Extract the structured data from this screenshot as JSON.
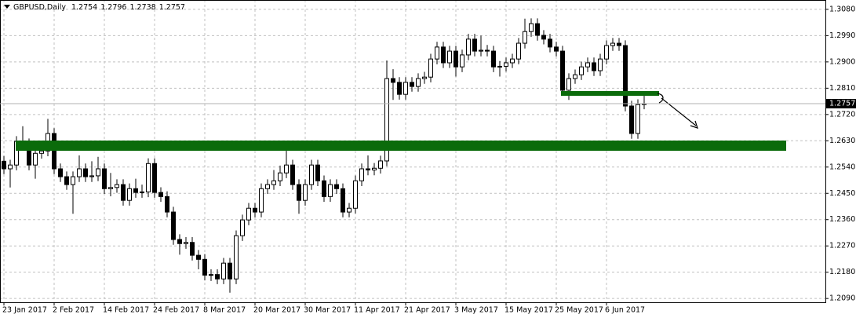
{
  "chart_data": {
    "type": "candlestick",
    "title": "GBPUSD,Daily",
    "categories": [
      "23 Jan 2017",
      null,
      null,
      null,
      null,
      null,
      null,
      null,
      "2 Feb 2017",
      null,
      null,
      null,
      null,
      null,
      null,
      null,
      "14 Feb 2017",
      null,
      null,
      null,
      null,
      null,
      null,
      null,
      "24 Feb 2017",
      null,
      null,
      null,
      null,
      null,
      null,
      null,
      "8 Mar 2017",
      null,
      null,
      null,
      null,
      null,
      null,
      null,
      "20 Mar 2017",
      null,
      null,
      null,
      null,
      null,
      null,
      null,
      "30 Mar 2017",
      null,
      null,
      null,
      null,
      null,
      null,
      null,
      "11 Apr 2017",
      null,
      null,
      null,
      null,
      null,
      null,
      null,
      "21 Apr 2017",
      null,
      null,
      null,
      null,
      null,
      null,
      null,
      "3 May 2017",
      null,
      null,
      null,
      null,
      null,
      null,
      null,
      "15 May 2017",
      null,
      null,
      null,
      null,
      null,
      null,
      null,
      "25 May 2017",
      null,
      null,
      null,
      null,
      null,
      null,
      null,
      "6 Jun 2017",
      null,
      null,
      null,
      null,
      null,
      null
    ],
    "series": {
      "open": [
        1.256,
        1.2534,
        1.2547,
        1.2628,
        1.262,
        1.2547,
        1.2587,
        1.2595,
        1.2655,
        1.2534,
        1.2507,
        1.248,
        1.2507,
        1.2534,
        1.2507,
        1.251,
        1.2534,
        1.2466,
        1.247,
        1.248,
        1.2426,
        1.2466,
        1.2453,
        1.2455,
        1.2552,
        1.2453,
        1.2439,
        1.2386,
        1.2292,
        1.2278,
        1.2282,
        1.2238,
        1.2224,
        1.217,
        1.2172,
        1.2157,
        1.2211,
        1.2157,
        1.2305,
        1.2359,
        1.2399,
        1.2386,
        1.2466,
        1.248,
        1.2493,
        1.252,
        1.2547,
        1.248,
        1.2426,
        1.248,
        1.2547,
        1.2493,
        1.2439,
        1.248,
        1.2466,
        1.2386,
        1.2399,
        1.2493,
        1.2534,
        1.253,
        1.2536,
        1.2561,
        1.2843,
        1.283,
        1.2789,
        1.283,
        1.2816,
        1.2843,
        1.2848,
        1.291,
        1.2951,
        1.2897,
        1.2937,
        1.2883,
        1.2924,
        1.2978,
        1.2937,
        1.294,
        1.2937,
        1.2883,
        1.2885,
        1.2897,
        1.291,
        1.2964,
        1.3004,
        1.3031,
        1.2991,
        1.2978,
        1.2951,
        1.2937,
        1.2803,
        1.2843,
        1.2856,
        1.2883,
        1.2897,
        1.287,
        1.291,
        1.2956,
        1.2964,
        1.2956,
        1.2749,
        1.2655,
        1.2754
      ],
      "high": [
        1.2578,
        1.2565,
        1.2646,
        1.268,
        1.2638,
        1.2605,
        1.2613,
        1.2705,
        1.2673,
        1.2552,
        1.2525,
        1.2525,
        1.258,
        1.2552,
        1.256,
        1.2575,
        1.2552,
        1.252,
        1.2498,
        1.2498,
        1.2484,
        1.25,
        1.248,
        1.257,
        1.257,
        1.2471,
        1.2457,
        1.2404,
        1.231,
        1.23,
        1.23,
        1.2256,
        1.2242,
        1.219,
        1.219,
        1.2229,
        1.2229,
        1.2323,
        1.2377,
        1.2417,
        1.2417,
        1.2484,
        1.2498,
        1.253,
        1.2545,
        1.26,
        1.2565,
        1.2498,
        1.2498,
        1.2565,
        1.2565,
        1.2511,
        1.2498,
        1.2498,
        1.2484,
        1.2417,
        1.2511,
        1.2552,
        1.258,
        1.2554,
        1.2579,
        1.2905,
        1.2875,
        1.2848,
        1.2848,
        1.2848,
        1.2861,
        1.2866,
        1.2928,
        1.2969,
        1.2969,
        1.2955,
        1.2955,
        1.2942,
        1.2996,
        1.2996,
        1.299,
        1.2958,
        1.2955,
        1.2903,
        1.2915,
        1.2928,
        1.2982,
        1.3048,
        1.3049,
        1.3049,
        1.3009,
        1.2996,
        1.2969,
        1.2955,
        1.2861,
        1.2874,
        1.2901,
        1.2915,
        1.2915,
        1.2928,
        1.2974,
        1.2982,
        1.2982,
        1.2974,
        1.2767,
        1.2772,
        1.2796
      ],
      "low": [
        1.2516,
        1.247,
        1.2529,
        1.2602,
        1.2529,
        1.25,
        1.2569,
        1.2577,
        1.2516,
        1.2489,
        1.2462,
        1.238,
        1.2489,
        1.2489,
        1.2489,
        1.2492,
        1.2448,
        1.244,
        1.2452,
        1.2408,
        1.2408,
        1.2435,
        1.2435,
        1.2437,
        1.2435,
        1.2421,
        1.2368,
        1.2274,
        1.224,
        1.226,
        1.222,
        1.219,
        1.2152,
        1.215,
        1.2139,
        1.2139,
        1.211,
        1.2139,
        1.2287,
        1.2341,
        1.2368,
        1.2368,
        1.2448,
        1.2462,
        1.2475,
        1.2502,
        1.2462,
        1.238,
        1.2408,
        1.2462,
        1.2475,
        1.2421,
        1.2421,
        1.2448,
        1.2368,
        1.2368,
        1.2381,
        1.2475,
        1.2512,
        1.2512,
        1.2518,
        1.2543,
        1.277,
        1.2771,
        1.2771,
        1.2798,
        1.2798,
        1.2825,
        1.283,
        1.2892,
        1.2879,
        1.2879,
        1.285,
        1.2865,
        1.2906,
        1.2919,
        1.2919,
        1.2919,
        1.2865,
        1.285,
        1.2867,
        1.2879,
        1.2892,
        1.2946,
        1.2986,
        1.2973,
        1.296,
        1.2933,
        1.2919,
        1.2785,
        1.277,
        1.2825,
        1.2838,
        1.2865,
        1.2852,
        1.2852,
        1.2892,
        1.2938,
        1.2938,
        1.2731,
        1.2637,
        1.2637,
        1.2738
      ],
      "close": [
        1.2534,
        1.2547,
        1.2628,
        1.262,
        1.2547,
        1.2587,
        1.2595,
        1.2655,
        1.2534,
        1.2507,
        1.248,
        1.2507,
        1.2534,
        1.2507,
        1.251,
        1.2534,
        1.2466,
        1.247,
        1.248,
        1.2426,
        1.2466,
        1.2453,
        1.2455,
        1.2552,
        1.2453,
        1.2439,
        1.2386,
        1.2292,
        1.2278,
        1.2282,
        1.2238,
        1.2224,
        1.217,
        1.2172,
        1.2157,
        1.2211,
        1.2157,
        1.2305,
        1.2359,
        1.2399,
        1.2386,
        1.2466,
        1.248,
        1.2493,
        1.252,
        1.2547,
        1.248,
        1.2426,
        1.248,
        1.2547,
        1.2493,
        1.2439,
        1.248,
        1.2466,
        1.2386,
        1.2399,
        1.2493,
        1.2534,
        1.253,
        1.2536,
        1.2561,
        1.2843,
        1.283,
        1.2789,
        1.283,
        1.2816,
        1.2843,
        1.2848,
        1.291,
        1.2951,
        1.2897,
        1.2937,
        1.2883,
        1.2924,
        1.2978,
        1.2937,
        1.294,
        1.2937,
        1.2883,
        1.2885,
        1.2897,
        1.291,
        1.2964,
        1.3004,
        1.3031,
        1.2991,
        1.2978,
        1.2951,
        1.2937,
        1.2803,
        1.2843,
        1.2856,
        1.2883,
        1.2897,
        1.287,
        1.291,
        1.2956,
        1.2964,
        1.2956,
        1.2749,
        1.2655,
        1.2754,
        1.2757
      ]
    },
    "up_color": "#ffffff",
    "down_color": "#000000",
    "ylim": [
      1.2077,
      1.3112
    ],
    "yticks": [
      {
        "value": 1.308,
        "label": "1.3080"
      },
      {
        "value": 1.299,
        "label": "1.2990"
      },
      {
        "value": 1.29,
        "label": "1.2900"
      },
      {
        "value": 1.281,
        "label": "1.2810"
      },
      {
        "value": 1.272,
        "label": "1.2720"
      },
      {
        "value": 1.263,
        "label": "1.2630"
      },
      {
        "value": 1.254,
        "label": "1.2540"
      },
      {
        "value": 1.245,
        "label": "1.2450"
      },
      {
        "value": 1.236,
        "label": "1.2360"
      },
      {
        "value": 1.227,
        "label": "1.2270"
      },
      {
        "value": 1.218,
        "label": "1.2180"
      },
      {
        "value": 1.209,
        "label": "1.2090"
      }
    ],
    "grid": true
  }
}
